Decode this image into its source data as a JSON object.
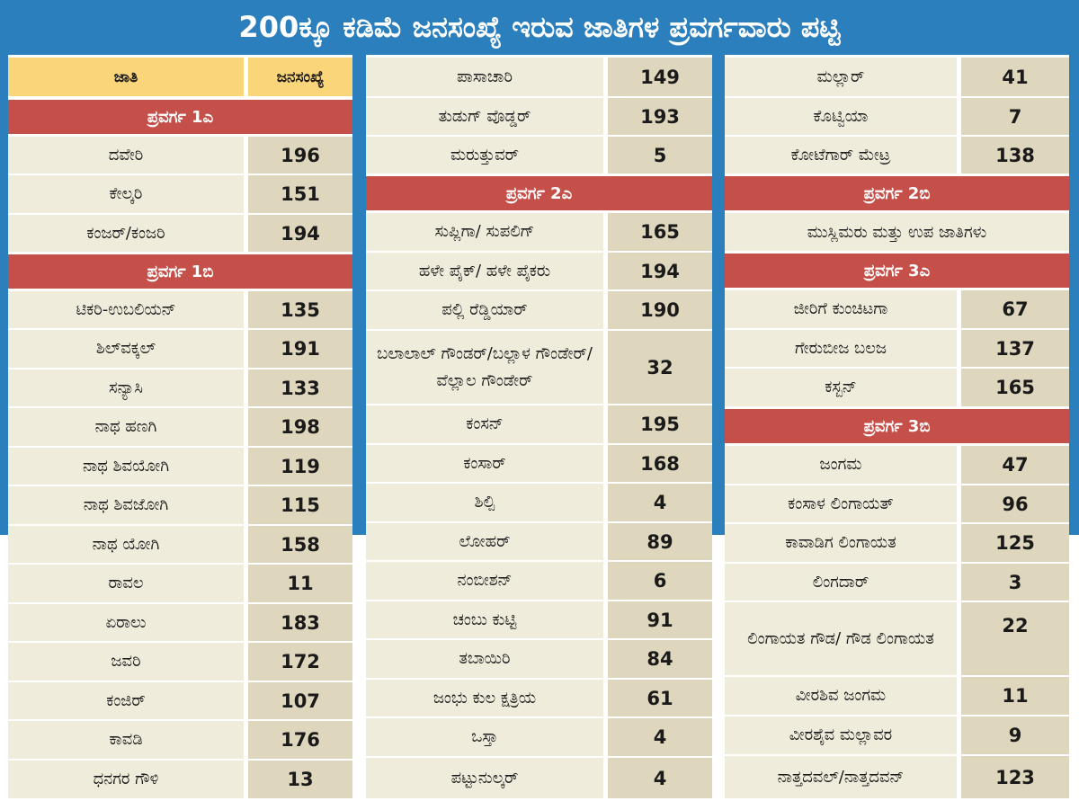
{
  "title": "200ಕ್ಕೂ ಕಡಿಮೆ ಜನಸಂಖ್ಯೆ ಇರುವ ಜಾತಿಗಳ ಪ್ರವರ್ಗವಾರು ಪಟ್ಟಿ",
  "colors": {
    "banner": "#2c7fbd",
    "section": "#c5504a",
    "header": "#fbd57a",
    "name_cell": "#f0ecdc",
    "count_cell": "#ded7bd"
  },
  "header": {
    "caste": "ಜಾತಿ",
    "population": "ಜನಸಂಖ್ಯೆ"
  },
  "col1": {
    "sec1a": "ಪ್ರವರ್ಗ 1ಎ",
    "r1": {
      "name": "ದವೇರಿ",
      "count": "196"
    },
    "r2": {
      "name": "ಕೇಲ್ಕರಿ",
      "count": "151"
    },
    "r3": {
      "name": "ಕಂಜರ್/ಕಂಜರಿ",
      "count": "194"
    },
    "sec1b": "ಪ್ರವರ್ಗ 1ಬಿ",
    "r4": {
      "name": "ಟಿಕರಿ-ಉಬಲಿಯನ್",
      "count": "135"
    },
    "r5": {
      "name": "ಶಿಲ್‌ವಕ್ಕಲ್",
      "count": "191"
    },
    "r6": {
      "name": "ಸನ್ಯಾಸಿ",
      "count": "133"
    },
    "r7": {
      "name": "ನಾಥ ಹಣಗಿ",
      "count": "198"
    },
    "r8": {
      "name": "ನಾಥ ಶಿವಯೋಗಿ",
      "count": "119"
    },
    "r9": {
      "name": "ನಾಥ ಶಿವಜೋಗಿ",
      "count": "115"
    },
    "r10": {
      "name": "ನಾಥ ಯೋಗಿ",
      "count": "158"
    },
    "r11": {
      "name": "ರಾವಲ",
      "count": "11"
    },
    "r12": {
      "name": "ಏರಾಲು",
      "count": "183"
    },
    "r13": {
      "name": "ಜವರಿ",
      "count": "172"
    },
    "r14": {
      "name": "ಕಂಜಿರ್",
      "count": "107"
    },
    "r15": {
      "name": "ಕಾವಡಿ",
      "count": "176"
    },
    "r16": {
      "name": "ಧನಗರ ಗೌಳಿ",
      "count": "13"
    }
  },
  "col2": {
    "r1": {
      "name": "ಪಾಸಾಚಾರಿ",
      "count": "149"
    },
    "r2": {
      "name": "ತುಡುಗ್ ವೊಡ್ಡರ್",
      "count": "193"
    },
    "r3": {
      "name": "ಮರುತ್ತುವರ್",
      "count": "5"
    },
    "sec2a": "ಪ್ರವರ್ಗ 2ಎ",
    "r4": {
      "name": "ಸುಪ್ಲಿಗಾ/ ಸುಪಲಿಗ್",
      "count": "165"
    },
    "r5": {
      "name": "ಹಳೇ ಪೈಕ್/ ಹಳೇ ಪೈಕರು",
      "count": "194"
    },
    "r6": {
      "name": "ಪಲ್ಲಿ ರೆಡ್ಡಿಯಾರ್",
      "count": "190"
    },
    "r7": {
      "name": "ಬಲಾಲಾಲ್ ಗೌಂಡರ್/ಬಲ್ಲಾಳ ಗೌಂಡೇರ್/ ವೆಲ್ಲಾಲ ಗೌಂಡೇರ್",
      "count": "32"
    },
    "r8": {
      "name": "ಕಂಸನ್",
      "count": "195"
    },
    "r9": {
      "name": "ಕಂಸಾರ್",
      "count": "168"
    },
    "r10": {
      "name": "ಶಿಲ್ಪಿ",
      "count": "4"
    },
    "r11": {
      "name": "ಲೋಹರ್",
      "count": "89"
    },
    "r12": {
      "name": "ನಂಬೀಶನ್",
      "count": "6"
    },
    "r13": {
      "name": "ಚಂಬು ಕುಟ್ಟಿ",
      "count": "91"
    },
    "r14": {
      "name": "ತಬಾಯಿರಿ",
      "count": "84"
    },
    "r15": {
      "name": "ಜಂಭು ಕುಲ ಕ್ಷತ್ರಿಯ",
      "count": "61"
    },
    "r16": {
      "name": "ಒಸ್ತಾ",
      "count": "4"
    },
    "r17": {
      "name": "ಪಟ್ಟುನುಲ್ಕರ್",
      "count": "4"
    }
  },
  "col3": {
    "r1": {
      "name": "ಮಲ್ಲಾರ್",
      "count": "41"
    },
    "r2": {
      "name": "ಕೊಟ್ವಿಯಾ",
      "count": "7"
    },
    "r3": {
      "name": "ಕೋಟೆಗಾರ್ ಮೇಟ್ರ",
      "count": "138"
    },
    "sec2b": "ಪ್ರವರ್ಗ 2ಬಿ",
    "muslim": "ಮುಸ್ಲಿಮರು ಮತ್ತು ಉಪ ಜಾತಿಗಳು",
    "sec3a": "ಪ್ರವರ್ಗ 3ಎ",
    "r4": {
      "name": "ಜೀರಿಗೆ ಕುಂಚಿಟಗಾ",
      "count": "67"
    },
    "r5": {
      "name": "ಗೇರುಬೀಜ ಬಲಜ",
      "count": "137"
    },
    "r6": {
      "name": "ಕಸ್ಬನ್",
      "count": "165"
    },
    "sec3b": "ಪ್ರವರ್ಗ 3ಬಿ",
    "r7": {
      "name": "ಜಂಗಮ",
      "count": "47"
    },
    "r8": {
      "name": "ಕಂಸಾಳ ಲಿಂಗಾಯತ್",
      "count": "96"
    },
    "r9": {
      "name": "ಕಾವಾಡಿಗ ಲಿಂಗಾಯತ",
      "count": "125"
    },
    "r10": {
      "name": "ಲಿಂಗದಾರ್",
      "count": "3"
    },
    "r11": {
      "name": "ಲಿಂಗಾಯತ ಗೌಡ/ ಗೌಡ ಲಿಂಗಾಯತ",
      "count": "22"
    },
    "r12": {
      "name": "ವೀರಶಿವ ಜಂಗಮ",
      "count": "11"
    },
    "r13": {
      "name": "ವೀರಶೈವ ಮಲ್ಲಾವರ",
      "count": "9"
    },
    "r14": {
      "name": "ನಾತ್ತದವಲ್/ನಾತ್ತದವನ್",
      "count": "123"
    }
  }
}
